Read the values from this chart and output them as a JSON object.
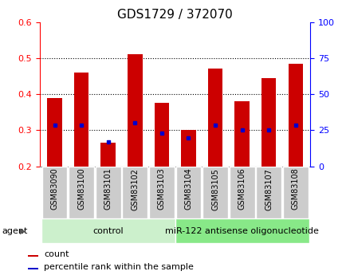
{
  "title": "GDS1729 / 372070",
  "categories": [
    "GSM83090",
    "GSM83100",
    "GSM83101",
    "GSM83102",
    "GSM83103",
    "GSM83104",
    "GSM83105",
    "GSM83106",
    "GSM83107",
    "GSM83108"
  ],
  "count_values": [
    0.39,
    0.46,
    0.265,
    0.51,
    0.375,
    0.3,
    0.47,
    0.38,
    0.445,
    0.485
  ],
  "percentile_values": [
    0.314,
    0.314,
    0.268,
    0.32,
    0.292,
    0.278,
    0.314,
    0.3,
    0.302,
    0.314
  ],
  "y_min": 0.2,
  "y_max": 0.6,
  "y_ticks": [
    0.2,
    0.3,
    0.4,
    0.5,
    0.6
  ],
  "y2_ticks": [
    0,
    25,
    50,
    75,
    100
  ],
  "bar_color": "#cc0000",
  "percentile_color": "#0000cc",
  "agent_groups": [
    {
      "label": "control",
      "start": 0,
      "end": 5,
      "color": "#ccf0cc"
    },
    {
      "label": "miR-122 antisense oligonucleotide",
      "start": 5,
      "end": 10,
      "color": "#88e888"
    }
  ],
  "tick_label_bg": "#cccccc",
  "legend_count_label": "count",
  "legend_percentile_label": "percentile rank within the sample",
  "agent_label": "agent",
  "title_fontsize": 11,
  "axis_fontsize": 8,
  "tick_fontsize": 7,
  "agent_fontsize": 8,
  "legend_fontsize": 8
}
